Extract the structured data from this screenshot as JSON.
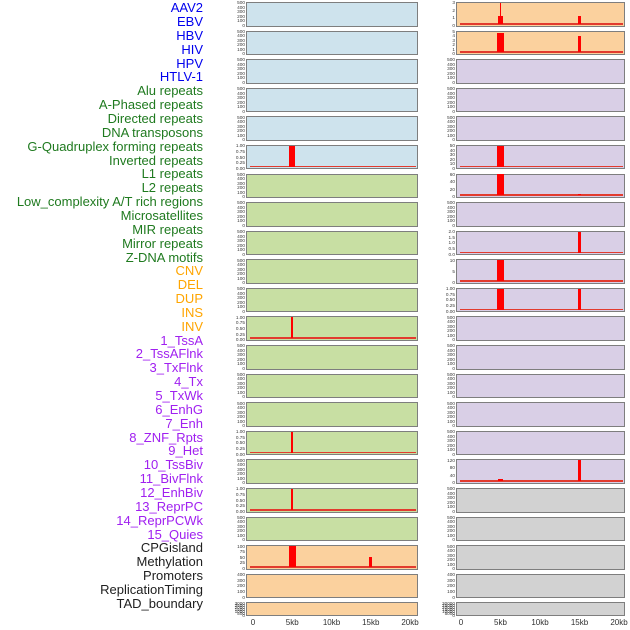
{
  "figure": {
    "colors": {
      "virus_label": "#0000EE",
      "repeat_label": "#1F7A1F",
      "sv_label": "#FFA500",
      "chromhmm_label": "#A020F0",
      "other_label": "#202020",
      "virus_bg": "#CEE3ED",
      "repeat_bg": "#C8DFA3",
      "sv_bg": "#FBD19E",
      "chromhmm_bg": "#D9CFE6",
      "other_bg": "#D2D2D2",
      "signal_red": "#FF0000",
      "baseline_red": "#E23B2E",
      "panel_border": "#7E7E7E",
      "tick_text": "#3A3A3A"
    }
  },
  "chart_data": {
    "type": "bar",
    "layout": "two columns of 22 track panels, column-major order; 44 row labels listed at left",
    "x_axis": {
      "range_kb": [
        0,
        20
      ],
      "ticks_kb": [
        0,
        5,
        10,
        15,
        20
      ],
      "tick_labels": [
        "0",
        "5kb",
        "10kb",
        "15kb",
        "20kb"
      ]
    },
    "default_y_ticks": [
      "500",
      "400",
      "300",
      "200",
      "100",
      "0"
    ],
    "tracks": [
      {
        "name": "AAV2",
        "category": "virus",
        "y_ticks": [
          "500",
          "400",
          "300",
          "200",
          "100",
          "0"
        ],
        "ymax": 500,
        "bars": []
      },
      {
        "name": "EBV",
        "category": "virus",
        "y_ticks": [
          "500",
          "400",
          "300",
          "200",
          "100",
          "0"
        ],
        "ymax": 500,
        "bars": []
      },
      {
        "name": "HBV",
        "category": "virus",
        "y_ticks": [
          "500",
          "400",
          "300",
          "200",
          "100",
          "0"
        ],
        "ymax": 500,
        "bars": []
      },
      {
        "name": "HIV",
        "category": "virus",
        "y_ticks": [
          "500",
          "400",
          "300",
          "200",
          "100",
          "0"
        ],
        "ymax": 500,
        "bars": []
      },
      {
        "name": "HPV",
        "category": "virus",
        "y_ticks": [
          "500",
          "400",
          "300",
          "200",
          "100",
          "0"
        ],
        "ymax": 500,
        "bars": []
      },
      {
        "name": "HTLV-1",
        "category": "virus",
        "y_ticks": [
          "1.00",
          "0.75",
          "0.50",
          "0.25",
          "0.00"
        ],
        "ymax": 1,
        "bars": [
          {
            "x_kb": 5,
            "width_kb": 0.8,
            "value": 1.0
          }
        ]
      },
      {
        "name": "Alu repeats",
        "category": "repeat",
        "y_ticks": [
          "500",
          "400",
          "300",
          "200",
          "100",
          "0"
        ],
        "ymax": 500,
        "bars": []
      },
      {
        "name": "A-Phased repeats",
        "category": "repeat",
        "y_ticks": [
          "500",
          "400",
          "300",
          "200",
          "100",
          "0"
        ],
        "ymax": 500,
        "bars": []
      },
      {
        "name": "Directed repeats",
        "category": "repeat",
        "y_ticks": [
          "500",
          "400",
          "300",
          "200",
          "100",
          "0"
        ],
        "ymax": 500,
        "bars": []
      },
      {
        "name": "DNA transposons",
        "category": "repeat",
        "y_ticks": [
          "500",
          "400",
          "300",
          "200",
          "100",
          "0"
        ],
        "ymax": 500,
        "bars": []
      },
      {
        "name": "G-Quadruplex forming repeats",
        "category": "repeat",
        "y_ticks": [
          "500",
          "400",
          "300",
          "200",
          "100",
          "0"
        ],
        "ymax": 500,
        "bars": []
      },
      {
        "name": "Inverted repeats",
        "category": "repeat",
        "y_ticks": [
          "1.00",
          "0.75",
          "0.50",
          "0.25",
          "0.00"
        ],
        "ymax": 1,
        "bars": [
          {
            "x_kb": 5,
            "width_kb": 0.3,
            "value": 1.0
          }
        ]
      },
      {
        "name": "L1 repeats",
        "category": "repeat",
        "y_ticks": [
          "500",
          "400",
          "300",
          "200",
          "100",
          "0"
        ],
        "ymax": 500,
        "bars": []
      },
      {
        "name": "L2 repeats",
        "category": "repeat",
        "y_ticks": [
          "500",
          "400",
          "300",
          "200",
          "100",
          "0"
        ],
        "ymax": 500,
        "bars": []
      },
      {
        "name": "Low_complexity A/T rich regions",
        "category": "repeat",
        "y_ticks": [
          "500",
          "400",
          "300",
          "200",
          "100",
          "0"
        ],
        "ymax": 500,
        "bars": []
      },
      {
        "name": "Microsatellites",
        "category": "repeat",
        "y_ticks": [
          "1.00",
          "0.75",
          "0.50",
          "0.25",
          "0.00"
        ],
        "ymax": 1,
        "bars": [
          {
            "x_kb": 5,
            "width_kb": 0.3,
            "value": 1.0
          }
        ]
      },
      {
        "name": "MIR repeats",
        "category": "repeat",
        "y_ticks": [
          "500",
          "400",
          "300",
          "200",
          "100",
          "0"
        ],
        "ymax": 500,
        "bars": []
      },
      {
        "name": "Mirror repeats",
        "category": "repeat",
        "y_ticks": [
          "1.00",
          "0.75",
          "0.50",
          "0.25",
          "0.00"
        ],
        "ymax": 1,
        "bars": [
          {
            "x_kb": 5,
            "width_kb": 0.3,
            "value": 1.0
          }
        ]
      },
      {
        "name": "Z-DNA motifs",
        "category": "repeat",
        "y_ticks": [
          "500",
          "400",
          "300",
          "200",
          "100",
          "0"
        ],
        "ymax": 500,
        "bars": []
      },
      {
        "name": "CNV",
        "category": "sv",
        "y_ticks": [
          "100",
          "75",
          "50",
          "25",
          "0"
        ],
        "ymax": 100,
        "bars": [
          {
            "x_kb": 5,
            "width_kb": 0.9,
            "value": 100
          },
          {
            "x_kb": 15,
            "width_kb": 0.35,
            "value": 50
          }
        ]
      },
      {
        "name": "DEL",
        "category": "sv",
        "y_ticks": [
          "400",
          "300",
          "200",
          "100",
          "0"
        ],
        "ymax": 400,
        "bars": []
      },
      {
        "name": "DUP",
        "category": "sv",
        "y_ticks": [
          "3000",
          "2500",
          "2000",
          "1500",
          "1000",
          "500",
          "0"
        ],
        "ymax": 3000,
        "bars": []
      },
      {
        "name": "INS",
        "category": "sv",
        "y_ticks": [
          "3",
          "2",
          "1",
          "0"
        ],
        "ymax": 3,
        "bars": [
          {
            "x_kb": 5,
            "width_kb": 0.7,
            "value": 1.1
          },
          {
            "x_kb": 5,
            "width_kb": 0.2,
            "value": 3.0
          },
          {
            "x_kb": 15,
            "width_kb": 0.3,
            "value": 1.2
          }
        ]
      },
      {
        "name": "INV",
        "category": "sv",
        "y_ticks": [
          "5",
          "4",
          "3",
          "2",
          "1",
          "0"
        ],
        "ymax": 5,
        "bars": [
          {
            "x_kb": 5,
            "width_kb": 0.8,
            "value": 4.6
          },
          {
            "x_kb": 15,
            "width_kb": 0.3,
            "value": 4.0
          }
        ]
      },
      {
        "name": "1_TssA",
        "category": "chromhmm",
        "y_ticks": [
          "500",
          "400",
          "300",
          "200",
          "100",
          "0"
        ],
        "ymax": 500,
        "bars": []
      },
      {
        "name": "2_TssAFlnk",
        "category": "chromhmm",
        "y_ticks": [
          "500",
          "400",
          "300",
          "200",
          "100",
          "0"
        ],
        "ymax": 500,
        "bars": []
      },
      {
        "name": "3_TxFlnk",
        "category": "chromhmm",
        "y_ticks": [
          "500",
          "400",
          "300",
          "200",
          "100",
          "0"
        ],
        "ymax": 500,
        "bars": []
      },
      {
        "name": "4_Tx",
        "category": "chromhmm",
        "y_ticks": [
          "50",
          "40",
          "30",
          "20",
          "10",
          "0"
        ],
        "ymax": 50,
        "bars": [
          {
            "x_kb": 5,
            "width_kb": 0.8,
            "value": 50
          }
        ]
      },
      {
        "name": "5_TxWk",
        "category": "chromhmm",
        "y_ticks": [
          "60",
          "40",
          "20",
          "0"
        ],
        "ymax": 60,
        "bars": [
          {
            "x_kb": 5,
            "width_kb": 0.8,
            "value": 60
          },
          {
            "x_kb": 15,
            "width_kb": 0.35,
            "value": 5
          }
        ]
      },
      {
        "name": "6_EnhG",
        "category": "chromhmm",
        "y_ticks": [
          "500",
          "400",
          "300",
          "200",
          "100",
          "0"
        ],
        "ymax": 500,
        "bars": []
      },
      {
        "name": "7_Enh",
        "category": "chromhmm",
        "y_ticks": [
          "2.0",
          "1.5",
          "1.0",
          "0.5",
          "0.0"
        ],
        "ymax": 2,
        "bars": [
          {
            "x_kb": 15,
            "width_kb": 0.3,
            "value": 2.0
          }
        ]
      },
      {
        "name": "8_ZNF_Rpts",
        "category": "chromhmm",
        "y_ticks": [
          "10",
          "5",
          "0"
        ],
        "ymax": 10,
        "bars": [
          {
            "x_kb": 5,
            "width_kb": 0.8,
            "value": 10
          }
        ]
      },
      {
        "name": "9_Het",
        "category": "chromhmm",
        "y_ticks": [
          "1.00",
          "0.75",
          "0.50",
          "0.25",
          "0.00"
        ],
        "ymax": 1,
        "bars": [
          {
            "x_kb": 5,
            "width_kb": 0.8,
            "value": 1.0
          },
          {
            "x_kb": 15,
            "width_kb": 0.3,
            "value": 1.0
          }
        ]
      },
      {
        "name": "10_TssBiv",
        "category": "chromhmm",
        "y_ticks": [
          "500",
          "400",
          "300",
          "200",
          "100",
          "0"
        ],
        "ymax": 500,
        "bars": []
      },
      {
        "name": "11_BivFlnk",
        "category": "chromhmm",
        "y_ticks": [
          "500",
          "400",
          "300",
          "200",
          "100",
          "0"
        ],
        "ymax": 500,
        "bars": []
      },
      {
        "name": "12_EnhBiv",
        "category": "chromhmm",
        "y_ticks": [
          "500",
          "400",
          "300",
          "200",
          "100",
          "0"
        ],
        "ymax": 500,
        "bars": []
      },
      {
        "name": "13_ReprPC",
        "category": "chromhmm",
        "y_ticks": [
          "500",
          "400",
          "300",
          "200",
          "100",
          "0"
        ],
        "ymax": 500,
        "bars": []
      },
      {
        "name": "14_ReprPCWk",
        "category": "chromhmm",
        "y_ticks": [
          "500",
          "400",
          "300",
          "200",
          "100",
          "0"
        ],
        "ymax": 500,
        "bars": []
      },
      {
        "name": "15_Quies",
        "category": "chromhmm",
        "y_ticks": [
          "120",
          "80",
          "40",
          "0"
        ],
        "ymax": 120,
        "bars": [
          {
            "x_kb": 5,
            "width_kb": 0.6,
            "value": 12
          },
          {
            "x_kb": 15,
            "width_kb": 0.35,
            "value": 120
          }
        ]
      },
      {
        "name": "CPGisland",
        "category": "other",
        "y_ticks": [
          "500",
          "400",
          "300",
          "200",
          "100",
          "0"
        ],
        "ymax": 500,
        "bars": []
      },
      {
        "name": "Methylation",
        "category": "other",
        "y_ticks": [
          "500",
          "400",
          "300",
          "200",
          "100",
          "0"
        ],
        "ymax": 500,
        "bars": []
      },
      {
        "name": "Promoters",
        "category": "other",
        "y_ticks": [
          "500",
          "400",
          "300",
          "200",
          "100",
          "0"
        ],
        "ymax": 500,
        "bars": []
      },
      {
        "name": "ReplicationTiming",
        "category": "other",
        "y_ticks": [
          "400",
          "300",
          "200",
          "100",
          "0"
        ],
        "ymax": 400,
        "bars": []
      },
      {
        "name": "TAD_boundary",
        "category": "other",
        "y_ticks": [
          "30000",
          "25000",
          "20000",
          "15000",
          "10000",
          "5000",
          "0"
        ],
        "ymax": 30000,
        "bars": []
      }
    ]
  }
}
